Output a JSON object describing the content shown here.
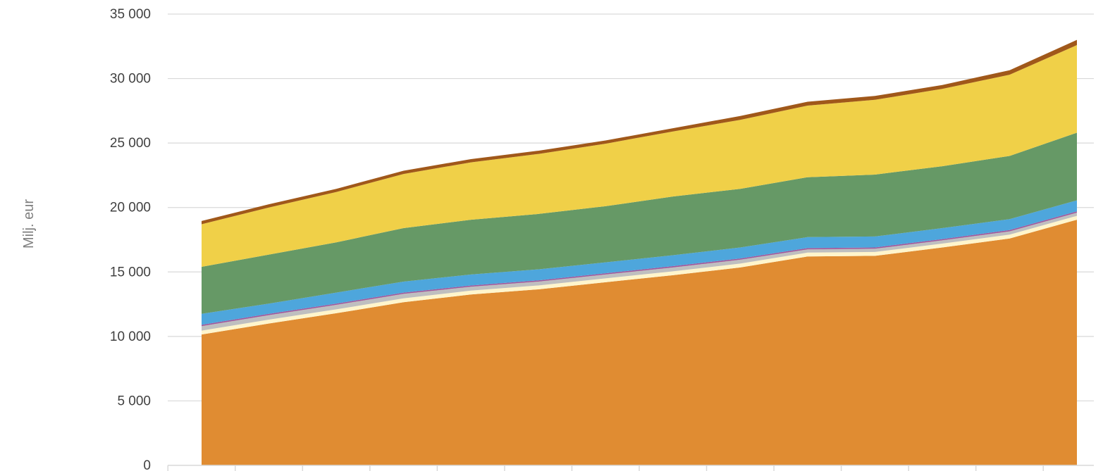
{
  "chart_data": {
    "type": "area",
    "stacked": true,
    "title": "",
    "xlabel": "",
    "ylabel": "Milj. eur",
    "ylim": [
      0,
      35000
    ],
    "y_ticks": [
      0,
      5000,
      10000,
      15000,
      20000,
      25000,
      30000,
      35000
    ],
    "y_tick_labels": [
      "0",
      "5 000",
      "10 000",
      "15 000",
      "20 000",
      "25 000",
      "30 000",
      "35 000"
    ],
    "x_count": 14,
    "grid": "horizontal",
    "legend": "none",
    "series": [
      {
        "color": "#E08C32",
        "values": [
          10150,
          11000,
          11800,
          12650,
          13250,
          13650,
          14200,
          14750,
          15350,
          16200,
          16250,
          16900,
          17600,
          19050
        ]
      },
      {
        "color": "#FFF5CC",
        "values": [
          300,
          300,
          300,
          300,
          300,
          300,
          300,
          300,
          300,
          300,
          300,
          300,
          300,
          300
        ]
      },
      {
        "color": "#BFBFBF",
        "values": [
          350,
          350,
          350,
          350,
          300,
          300,
          300,
          300,
          300,
          250,
          250,
          250,
          250,
          250
        ]
      },
      {
        "color": "#A05A9C",
        "values": [
          100,
          100,
          100,
          100,
          100,
          100,
          100,
          100,
          100,
          100,
          100,
          100,
          100,
          100
        ]
      },
      {
        "color": "#4EA6DC",
        "values": [
          850,
          800,
          850,
          850,
          850,
          850,
          850,
          850,
          850,
          850,
          850,
          850,
          850,
          850
        ]
      },
      {
        "color": "#669966",
        "values": [
          3650,
          3800,
          3900,
          4150,
          4250,
          4300,
          4350,
          4550,
          4550,
          4650,
          4800,
          4800,
          4900,
          5250
        ]
      },
      {
        "color": "#F0D048",
        "values": [
          3300,
          3650,
          3900,
          4200,
          4450,
          4650,
          4850,
          5050,
          5350,
          5550,
          5800,
          6000,
          6300,
          6800
        ]
      },
      {
        "color": "#A0581A",
        "values": [
          250,
          250,
          250,
          250,
          250,
          250,
          250,
          250,
          300,
          300,
          300,
          300,
          350,
          400
        ]
      }
    ]
  }
}
